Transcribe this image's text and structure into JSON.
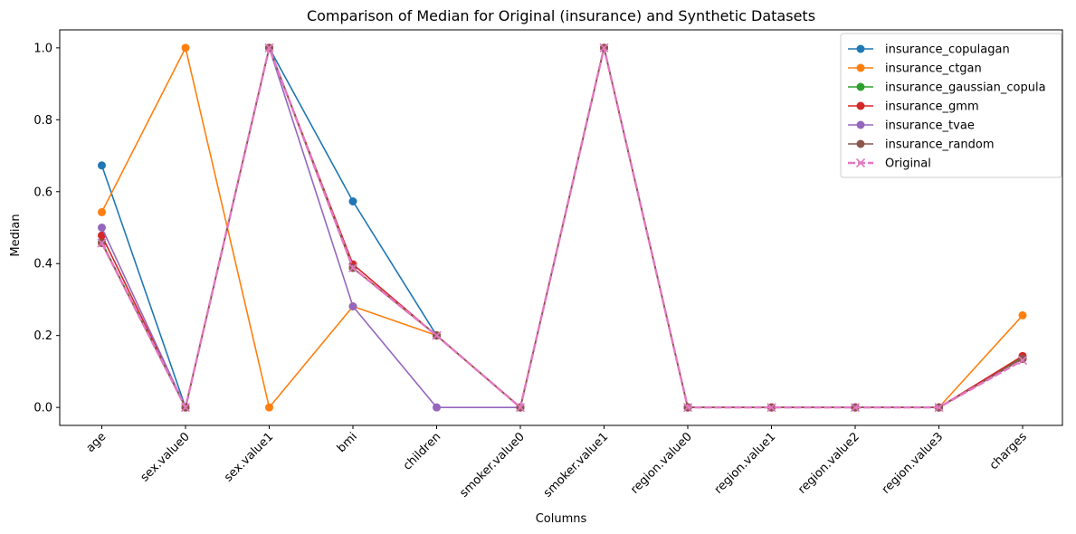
{
  "chart_data": {
    "type": "line",
    "title": "Comparison of Median for Original (insurance) and Synthetic Datasets",
    "xlabel": "Columns",
    "ylabel": "Median",
    "ylim": [
      -0.05,
      1.05
    ],
    "yticks": [
      0.0,
      0.2,
      0.4,
      0.6,
      0.8,
      1.0
    ],
    "ytick_labels": [
      "0.0",
      "0.2",
      "0.4",
      "0.6",
      "0.8",
      "1.0"
    ],
    "grid": false,
    "legend_position": "top-right",
    "categories": [
      "age",
      "sex.value0",
      "sex.value1",
      "bmi",
      "children",
      "smoker.value0",
      "smoker.value1",
      "region.value0",
      "region.value1",
      "region.value2",
      "region.value3",
      "charges"
    ],
    "series": [
      {
        "name": "insurance_copulagan",
        "color": "#1f77b4",
        "marker": "circle",
        "dashed": false,
        "values": [
          0.673,
          0.0,
          1.0,
          0.573,
          0.2,
          0.0,
          1.0,
          0.0,
          0.0,
          0.0,
          0.0,
          0.14
        ]
      },
      {
        "name": "insurance_ctgan",
        "color": "#ff7f0e",
        "marker": "circle",
        "dashed": false,
        "values": [
          0.543,
          1.0,
          0.0,
          0.281,
          0.2,
          0.0,
          1.0,
          0.0,
          0.0,
          0.0,
          0.0,
          0.256
        ]
      },
      {
        "name": "insurance_gaussian_copula",
        "color": "#2ca02c",
        "marker": "circle",
        "dashed": false,
        "values": [
          0.46,
          0.0,
          1.0,
          0.388,
          0.2,
          0.0,
          1.0,
          0.0,
          0.0,
          0.0,
          0.0,
          0.14
        ]
      },
      {
        "name": "insurance_gmm",
        "color": "#d62728",
        "marker": "circle",
        "dashed": false,
        "values": [
          0.478,
          0.0,
          1.0,
          0.398,
          0.2,
          0.0,
          1.0,
          0.0,
          0.0,
          0.0,
          0.0,
          0.143
        ]
      },
      {
        "name": "insurance_tvae",
        "color": "#9467bd",
        "marker": "circle",
        "dashed": false,
        "values": [
          0.5,
          0.0,
          1.0,
          0.281,
          0.0,
          0.0,
          1.0,
          0.0,
          0.0,
          0.0,
          0.0,
          0.135
        ]
      },
      {
        "name": "insurance_random",
        "color": "#8c564b",
        "marker": "circle",
        "dashed": false,
        "values": [
          0.457,
          0.0,
          1.0,
          0.388,
          0.2,
          0.0,
          1.0,
          0.0,
          0.0,
          0.0,
          0.0,
          0.135
        ]
      },
      {
        "name": "Original",
        "color": "#e377c2",
        "marker": "x",
        "dashed": true,
        "values": [
          0.457,
          0.0,
          1.0,
          0.388,
          0.2,
          0.0,
          1.0,
          0.0,
          0.0,
          0.0,
          0.0,
          0.131
        ]
      }
    ]
  }
}
